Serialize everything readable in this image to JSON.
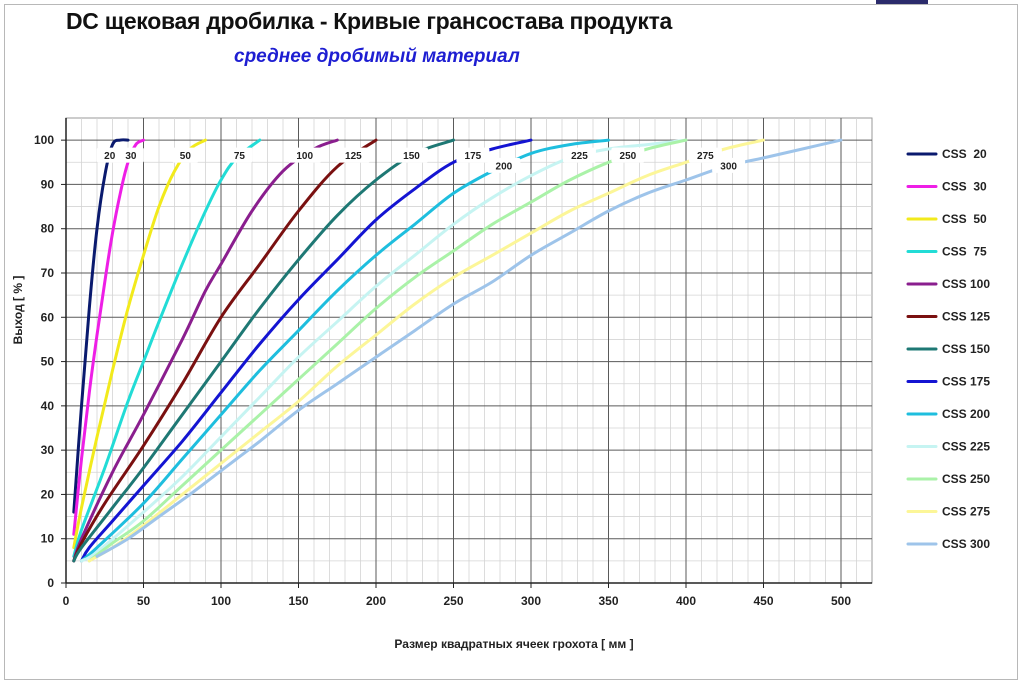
{
  "title": "DC щековая дробилка - Кривые грансостава продукта",
  "subtitle": "среднее дробимый материал",
  "chart_data": {
    "type": "line",
    "title": "DC щековая дробилка - Кривые грансостава продукта",
    "subtitle": "среднее дробимый материал",
    "xlabel": "Размер квадратных ячеек грохота [ мм ]",
    "ylabel": "Выход [ % ]",
    "xlim": [
      0,
      520
    ],
    "ylim": [
      0,
      105
    ],
    "xticks": [
      0,
      50,
      100,
      150,
      200,
      250,
      300,
      350,
      400,
      450,
      500
    ],
    "yticks": [
      0,
      10,
      20,
      30,
      40,
      50,
      60,
      70,
      80,
      90,
      100
    ],
    "grid": true,
    "legend_position": "right",
    "series": [
      {
        "name": "CSS  20",
        "color": "#0a1a6e",
        "label": "20",
        "x": [
          5,
          10,
          15,
          20,
          25,
          30,
          35,
          40
        ],
        "y": [
          16,
          40,
          62,
          80,
          92,
          99,
          100,
          100
        ]
      },
      {
        "name": "CSS  30",
        "color": "#ee1ee6",
        "label": "30",
        "x": [
          5,
          10,
          15,
          20,
          25,
          30,
          35,
          40,
          45,
          50
        ],
        "y": [
          11,
          28,
          43,
          56,
          68,
          79,
          88,
          95,
          99,
          100
        ]
      },
      {
        "name": "CSS  50",
        "color": "#f2ea1c",
        "label": "50",
        "x": [
          5,
          10,
          20,
          30,
          40,
          50,
          60,
          70,
          80,
          90
        ],
        "y": [
          8,
          17,
          33,
          48,
          62,
          74,
          85,
          93,
          98,
          100
        ]
      },
      {
        "name": "CSS  75",
        "color": "#22dcd6",
        "label": "75",
        "x": [
          5,
          10,
          25,
          40,
          50,
          60,
          75,
          90,
          100,
          110,
          125
        ],
        "y": [
          6,
          12,
          26,
          41,
          50,
          59,
          72,
          84,
          91,
          96,
          100
        ]
      },
      {
        "name": "CSS 100",
        "color": "#8a1e8e",
        "label": "100",
        "x": [
          5,
          10,
          30,
          50,
          75,
          90,
          100,
          120,
          140,
          160,
          175
        ],
        "y": [
          5,
          10,
          25,
          38,
          55,
          66,
          72,
          84,
          93,
          98,
          100
        ]
      },
      {
        "name": "CSS 125",
        "color": "#7a1010",
        "label": "125",
        "x": [
          5,
          10,
          25,
          50,
          75,
          100,
          125,
          150,
          175,
          200
        ],
        "y": [
          5,
          9,
          18,
          31,
          45,
          60,
          72,
          84,
          94,
          100
        ]
      },
      {
        "name": "CSS 150",
        "color": "#1e7874",
        "label": "150",
        "x": [
          5,
          10,
          30,
          50,
          75,
          100,
          125,
          150,
          175,
          200,
          225,
          250
        ],
        "y": [
          5,
          8,
          17,
          26,
          38,
          50,
          62,
          73,
          83,
          91,
          97,
          100
        ]
      },
      {
        "name": "CSS 175",
        "color": "#1414d2",
        "label": "175",
        "x": [
          10,
          15,
          30,
          50,
          75,
          100,
          125,
          150,
          175,
          200,
          225,
          250,
          275,
          300
        ],
        "y": [
          5,
          8,
          14,
          22,
          32,
          43,
          54,
          64,
          73,
          82,
          89,
          95,
          98,
          100
        ]
      },
      {
        "name": "CSS 200",
        "color": "#1ebede",
        "label": "200",
        "x": [
          10,
          20,
          50,
          75,
          100,
          125,
          150,
          175,
          200,
          225,
          250,
          275,
          300,
          325,
          350
        ],
        "y": [
          5,
          8,
          18,
          28,
          38,
          48,
          57,
          66,
          74,
          81,
          88,
          93,
          97,
          99,
          100
        ]
      },
      {
        "name": "CSS 225",
        "color": "#c6f4f2",
        "label": "225",
        "x": [
          10,
          20,
          50,
          75,
          100,
          125,
          150,
          175,
          200,
          225,
          250,
          275,
          300,
          325,
          350,
          375,
          400
        ],
        "y": [
          5,
          7,
          16,
          24,
          33,
          42,
          51,
          59,
          67,
          74,
          81,
          87,
          92,
          96,
          98,
          99,
          100
        ]
      },
      {
        "name": "CSS 250",
        "color": "#aaf2a8",
        "label": "250",
        "x": [
          15,
          30,
          50,
          75,
          100,
          125,
          150,
          175,
          200,
          225,
          250,
          275,
          300,
          325,
          350,
          375,
          400
        ],
        "y": [
          5,
          9,
          14,
          22,
          30,
          38,
          46,
          54,
          62,
          69,
          75,
          81,
          86,
          91,
          95,
          98,
          100
        ]
      },
      {
        "name": "CSS 275",
        "color": "#fcf698",
        "label": "275",
        "x": [
          15,
          30,
          50,
          75,
          100,
          125,
          150,
          175,
          200,
          225,
          250,
          275,
          300,
          325,
          350,
          375,
          400,
          425,
          450
        ],
        "y": [
          5,
          8,
          13,
          20,
          27,
          34,
          41,
          49,
          56,
          63,
          69,
          74,
          79,
          84,
          88,
          92,
          95,
          98,
          100
        ]
      },
      {
        "name": "CSS 300",
        "color": "#9ec4ea",
        "label": "300",
        "x": [
          20,
          40,
          60,
          80,
          95,
          110,
          125,
          150,
          175,
          200,
          225,
          250,
          275,
          300,
          325,
          350,
          375,
          400,
          425,
          450,
          475,
          500
        ],
        "y": [
          6,
          10,
          15,
          20,
          24,
          28,
          32,
          39,
          45,
          51,
          57,
          63,
          68,
          74,
          79,
          84,
          88,
          91,
          94,
          96,
          98,
          100
        ]
      }
    ]
  }
}
